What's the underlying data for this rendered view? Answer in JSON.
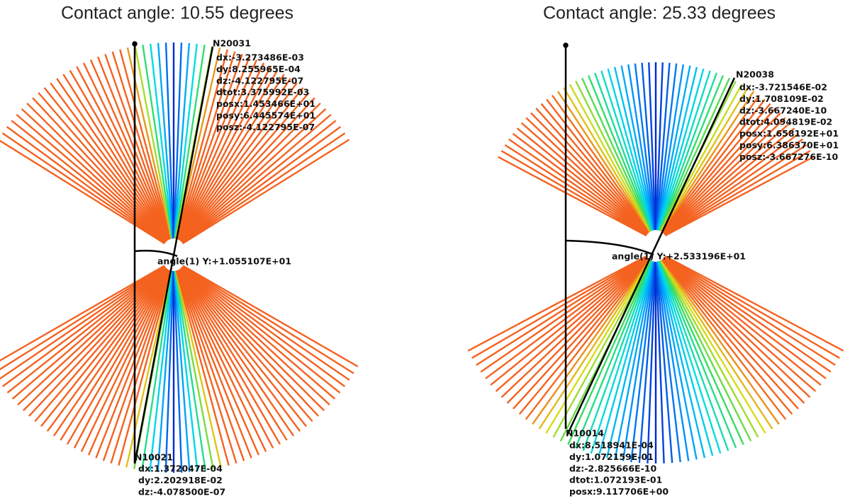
{
  "panels": [
    {
      "title": "Contact angle: 10.55 degrees",
      "top_node": {
        "id": "N20031",
        "lines": [
          "dx:-3.273486E-03",
          "dy:8.255965E-04",
          "dz:-4.122795E-07",
          "dtot:3.375992E-03",
          "posx:1.453466E+01",
          "posy:6.445574E+01",
          "posz:-4.122795E-07"
        ]
      },
      "bottom_node": {
        "id": "N10021",
        "lines": [
          "dx:1.372047E-04",
          "dy:2.202918E-02",
          "dz:-4.078500E-07"
        ]
      },
      "angle_label": "angle(1) Y:+1.055107E+01"
    },
    {
      "title": "Contact angle: 25.33 degrees",
      "top_node": {
        "id": "N20038",
        "lines": [
          "dx:-3.721546E-02",
          "dy:1.708109E-02",
          "dz:-3.667240E-10",
          "dtot:4.094819E-02",
          "posx:1.658192E+01",
          "posy:6.386370E+01",
          "posz:-3.667276E-10"
        ]
      },
      "bottom_node": {
        "id": "N10014",
        "lines": [
          "dx:8.518941E-04",
          "dy:1.072159E-01",
          "dz:-2.825666E-10",
          "dtot:1.072193E-01",
          "posx:9.117706E+00"
        ]
      },
      "angle_label": "angle(1) Y:+2.533196E+01"
    }
  ]
}
